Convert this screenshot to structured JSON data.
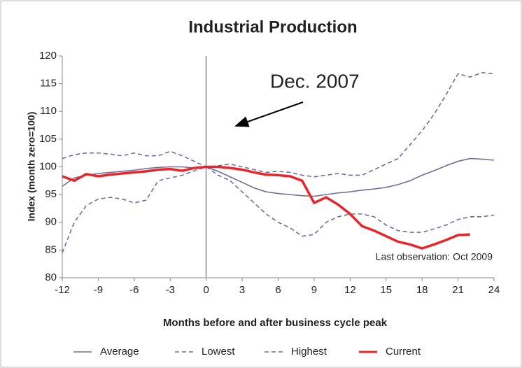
{
  "chart_data": {
    "type": "line",
    "title": "Industrial Production",
    "x_label": "Months before and after business cycle peak",
    "y_label": "Index (month zero=100)",
    "annotations": [
      "Dec. 2007",
      "Last observation: Oct 2009"
    ],
    "x": [
      -12,
      -11,
      -10,
      -9,
      -8,
      -7,
      -6,
      -5,
      -4,
      -3,
      -2,
      -1,
      0,
      1,
      2,
      3,
      4,
      5,
      6,
      7,
      8,
      9,
      10,
      11,
      12,
      13,
      14,
      15,
      16,
      17,
      18,
      19,
      20,
      21,
      22,
      23,
      24
    ],
    "xlim": [
      -12,
      24
    ],
    "xticks": [
      -12,
      -9,
      -6,
      -3,
      0,
      3,
      6,
      9,
      12,
      15,
      18,
      21,
      24
    ],
    "ylim": [
      80,
      120
    ],
    "yticks": [
      80,
      85,
      90,
      95,
      100,
      105,
      110,
      115,
      120
    ],
    "legend": "bottom",
    "series": [
      {
        "name": "Average",
        "color": "#6e6e94",
        "style": "solid",
        "values": [
          96.5,
          98,
          98.5,
          98.8,
          99,
          99.2,
          99.4,
          99.7,
          99.9,
          100,
          100,
          99.8,
          100,
          99.2,
          98.2,
          97.2,
          96.2,
          95.5,
          95.2,
          95,
          94.8,
          94.7,
          95,
          95.3,
          95.5,
          95.8,
          96,
          96.3,
          96.8,
          97.5,
          98.5,
          99.3,
          100.2,
          101,
          101.5,
          101.4,
          101.2
        ]
      },
      {
        "name": "Lowest",
        "color": "#6e6e9e",
        "style": "dashed",
        "values": [
          84.5,
          90,
          93,
          94.2,
          94.5,
          94.2,
          93.5,
          94,
          97.5,
          98,
          98.5,
          99.3,
          100,
          98.5,
          97.5,
          95.5,
          93.5,
          91.5,
          90,
          89,
          87.5,
          87.8,
          90,
          91,
          91.5,
          91.5,
          91,
          89.5,
          88.5,
          88.2,
          88.2,
          88.8,
          89.5,
          90.5,
          91,
          91,
          91.3
        ]
      },
      {
        "name": "Highest",
        "color": "#6e6e9e",
        "style": "dashed",
        "values": [
          101.5,
          102.2,
          102.5,
          102.5,
          102.3,
          102,
          102.5,
          102,
          102,
          102.8,
          102,
          101,
          100,
          100.2,
          100.5,
          100,
          99.5,
          99,
          99.2,
          99,
          98.5,
          98.2,
          98.5,
          98.8,
          98.5,
          98.5,
          99.5,
          100.5,
          101.5,
          104,
          106.5,
          109.5,
          113,
          116.8,
          116.2,
          117,
          116.8
        ]
      },
      {
        "name": "Current",
        "color": "#e8262a",
        "style": "solid",
        "values": [
          98.3,
          97.5,
          98.7,
          98.3,
          98.6,
          98.8,
          99,
          99.2,
          99.5,
          99.6,
          99.3,
          99.8,
          100,
          100,
          99.8,
          99.5,
          99,
          98.6,
          98.5,
          98.3,
          97.5,
          93.5,
          94.5,
          93.2,
          91.5,
          89.3,
          88.5,
          87.5,
          86.5,
          86,
          85.3,
          86,
          86.8,
          87.7,
          87.8,
          null,
          null
        ]
      }
    ]
  }
}
